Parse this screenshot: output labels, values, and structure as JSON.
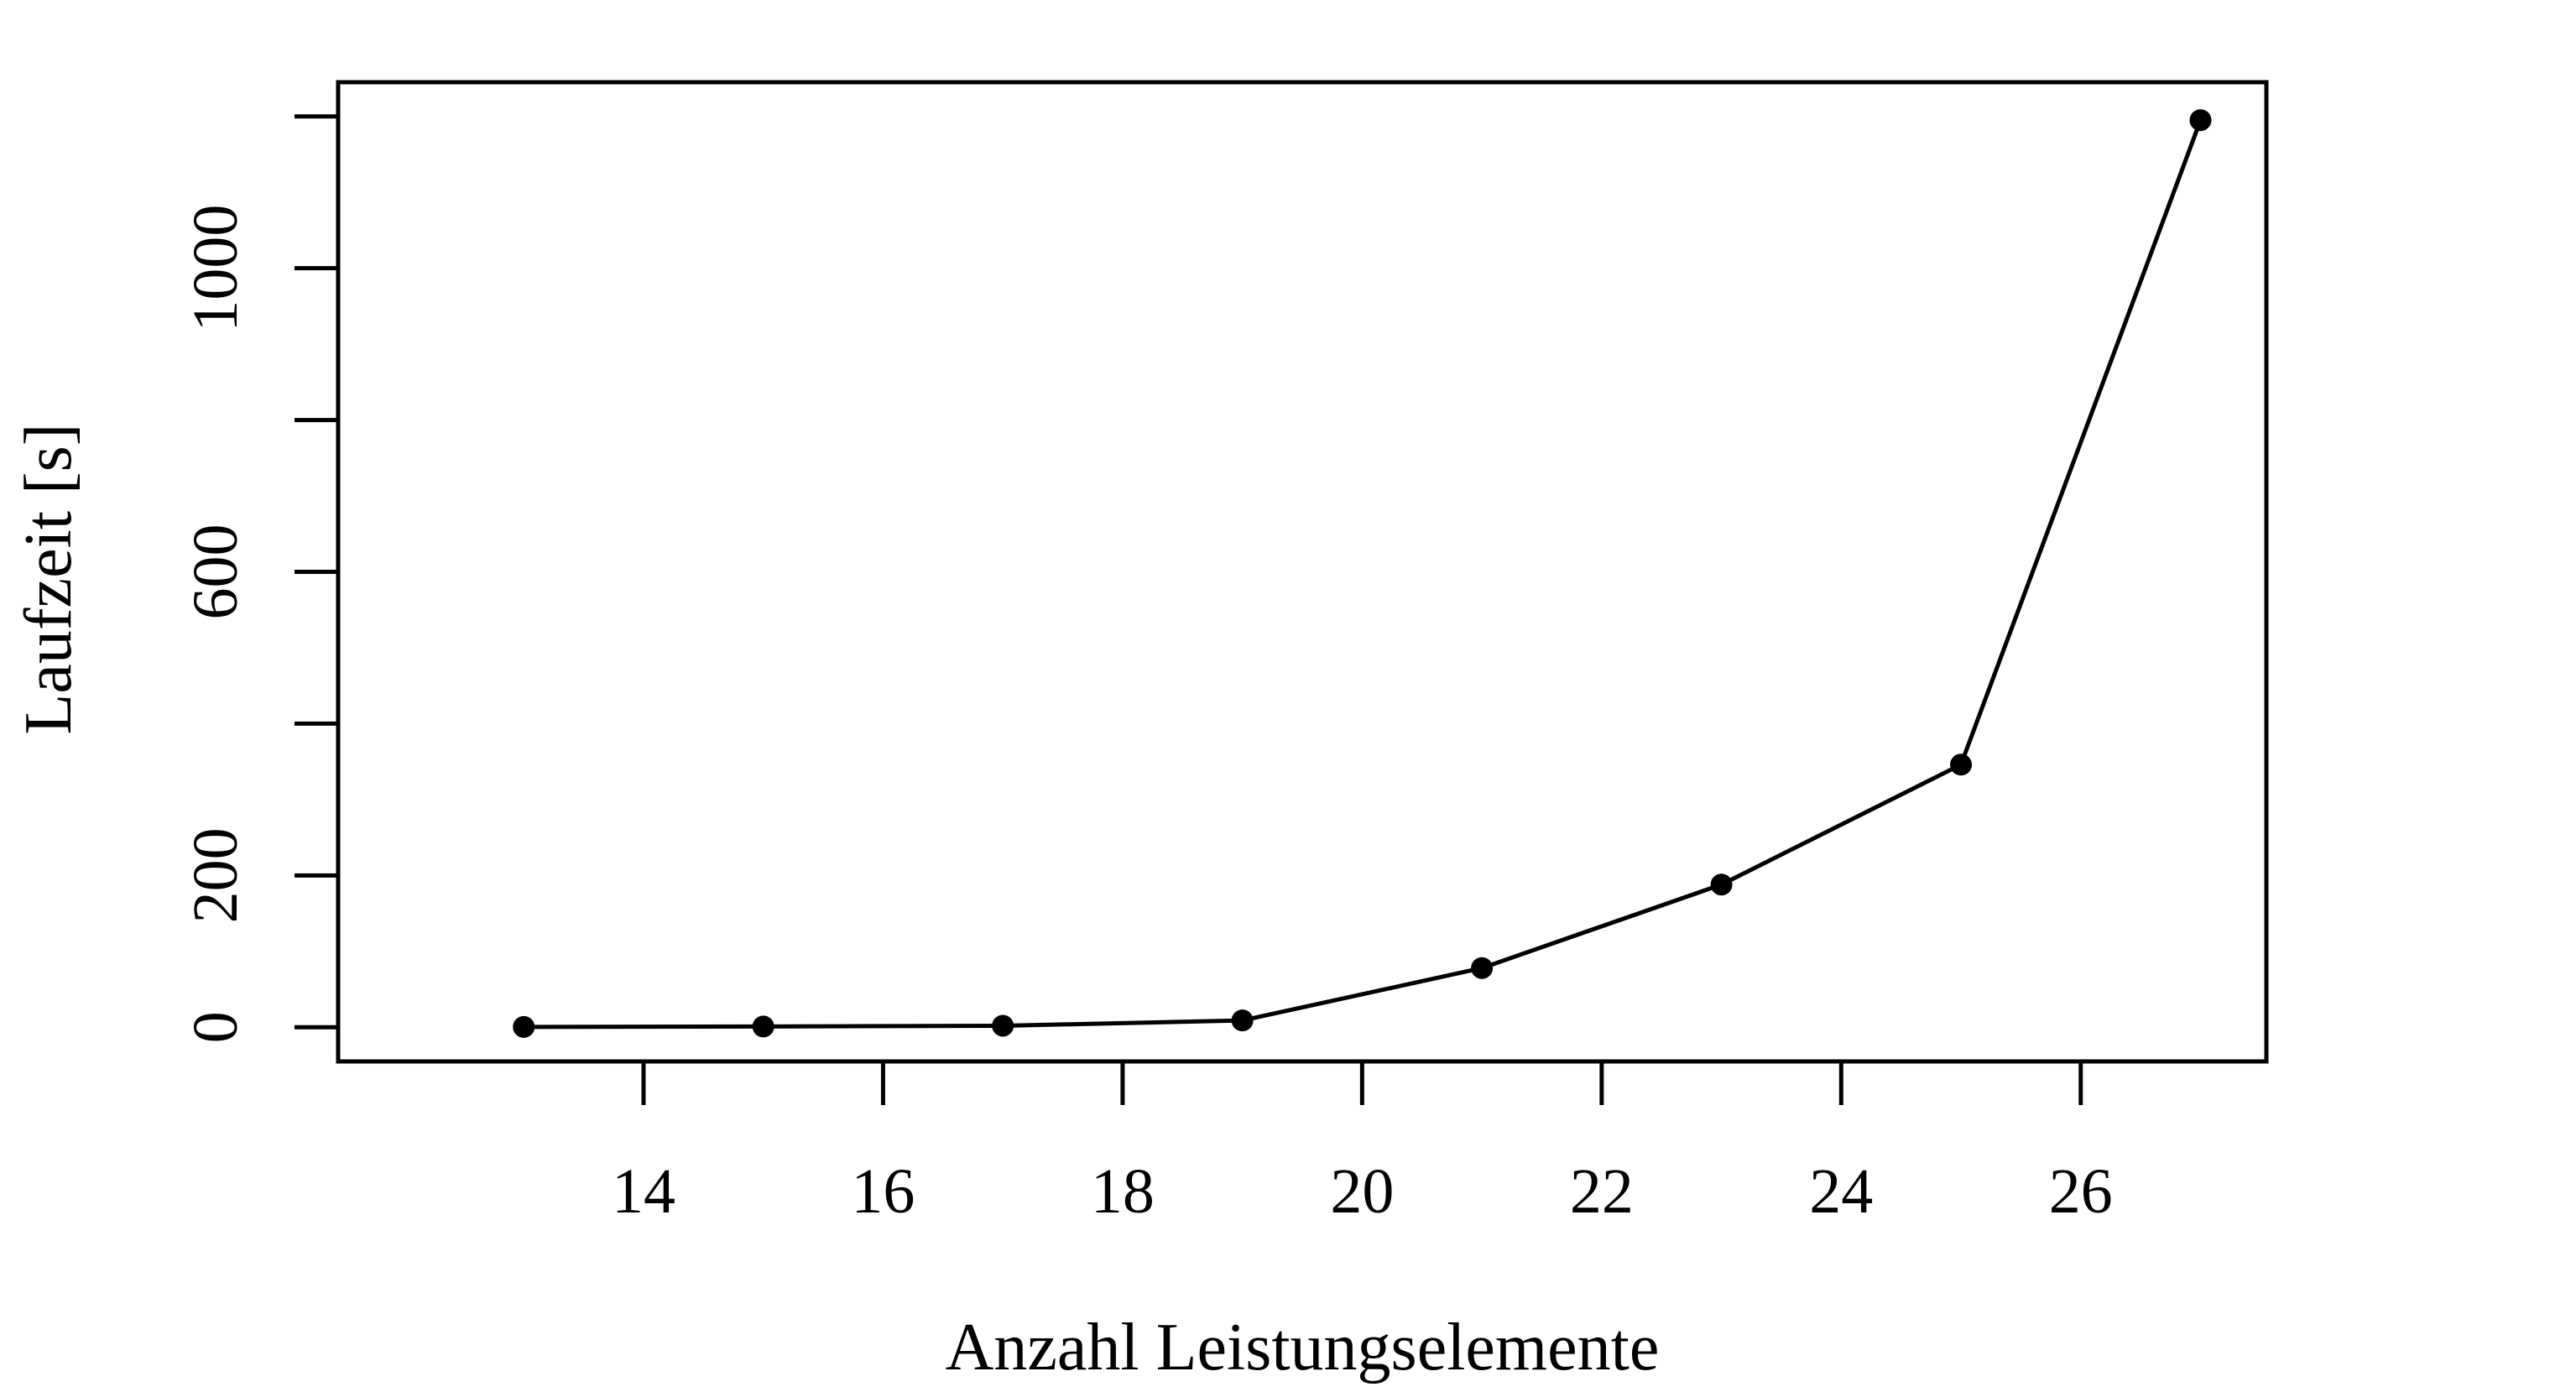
{
  "chart_data": {
    "type": "line",
    "xlabel": "Anzahl Leistungselemente",
    "ylabel": "Laufzeit [s]",
    "x": [
      13,
      15,
      17,
      19,
      21,
      23,
      25,
      27
    ],
    "series": [
      {
        "values": [
          0.5,
          1,
          2,
          9,
          78,
          188,
          346,
          1195
        ]
      }
    ],
    "xlim": [
      11.45,
      27.55
    ],
    "ylim": [
      -45,
      1245
    ],
    "xticks": [
      14,
      16,
      18,
      20,
      22,
      24,
      26
    ],
    "xtick_labels": [
      "14",
      "16",
      "18",
      "20",
      "22",
      "24",
      "26"
    ],
    "yticks": [
      0,
      200,
      400,
      600,
      800,
      1000,
      1200
    ],
    "ytick_labels": [
      "0",
      "200",
      "",
      "600",
      "",
      "1000",
      ""
    ],
    "grid": false,
    "legend": "none",
    "colors": {
      "line": "#000000",
      "marker": "#000000"
    }
  }
}
